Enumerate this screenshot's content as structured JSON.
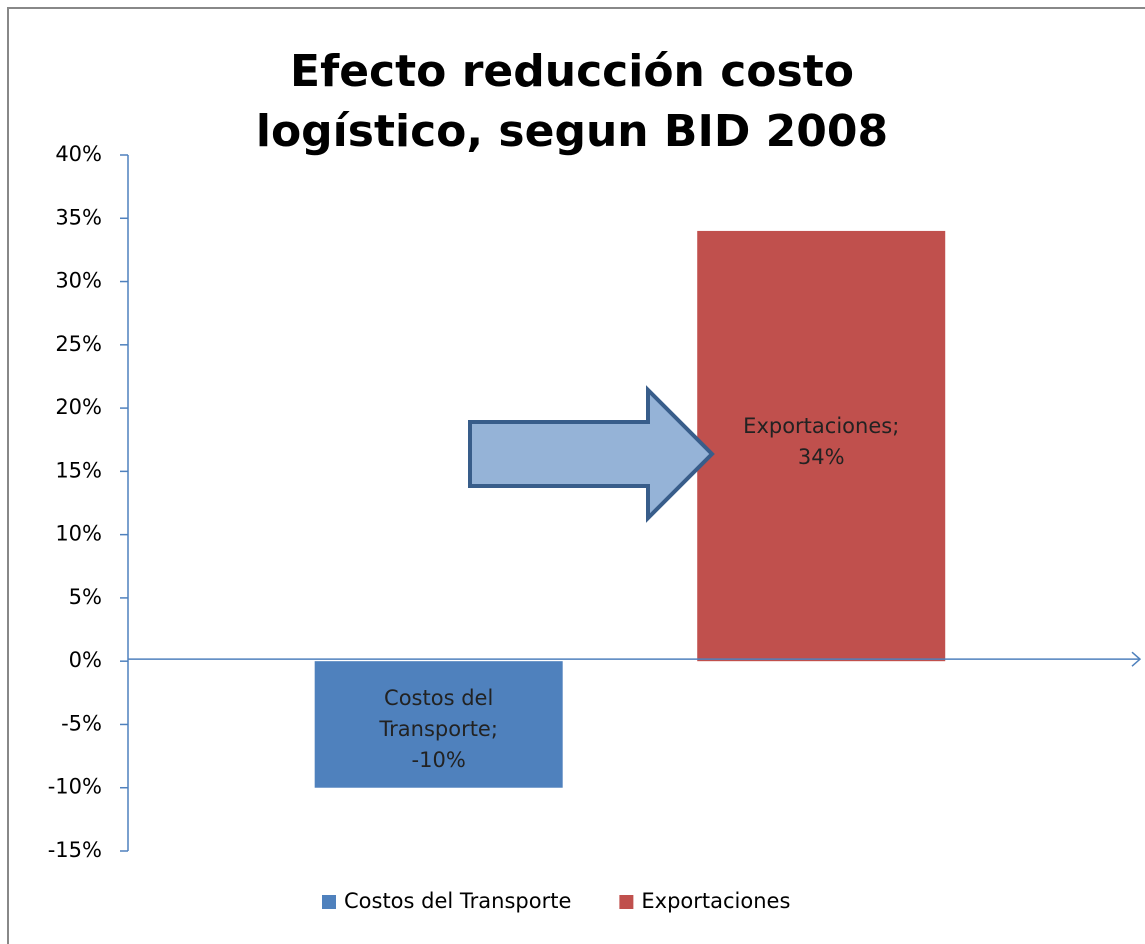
{
  "chart_data": {
    "type": "bar",
    "title": "Efecto reducción costo logístico, segun BID 2008",
    "series": [
      {
        "name": "Costos del Transporte",
        "color": "#4f81bd",
        "values": [
          -10
        ],
        "value_labels": [
          "-10%"
        ]
      },
      {
        "name": "Exportaciones",
        "color": "#c0504d",
        "values": [
          34
        ],
        "value_labels": [
          "34%"
        ]
      }
    ],
    "data_label_separator": ";",
    "ylim": [
      -15,
      40
    ],
    "yticks": [
      {
        "value": -15,
        "label": "-15%"
      },
      {
        "value": -10,
        "label": "-10%"
      },
      {
        "value": -5,
        "label": "-5%"
      },
      {
        "value": 0,
        "label": "0%"
      },
      {
        "value": 5,
        "label": "5%"
      },
      {
        "value": 10,
        "label": "10%"
      },
      {
        "value": 15,
        "label": "15%"
      },
      {
        "value": 20,
        "label": "20%"
      },
      {
        "value": 25,
        "label": "25%"
      },
      {
        "value": 30,
        "label": "30%"
      },
      {
        "value": 35,
        "label": "35%"
      },
      {
        "value": 40,
        "label": "40%"
      }
    ],
    "legend": "bottom"
  }
}
